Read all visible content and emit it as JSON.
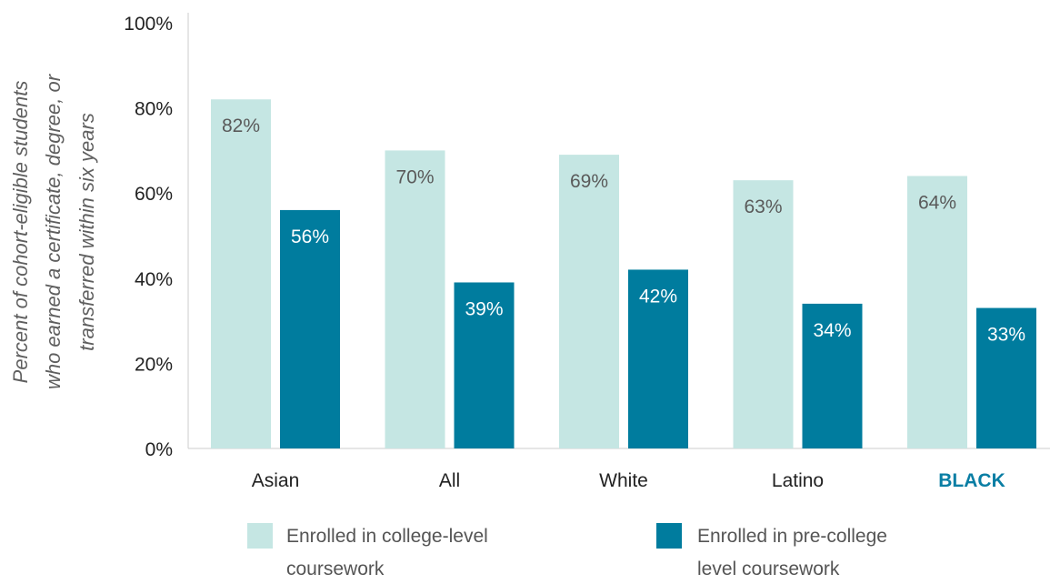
{
  "chart_data": {
    "type": "bar",
    "ylabel_lines": [
      "Percent of cohort-eligible students",
      "who earned a certificate, degree, or",
      "transferred within six years"
    ],
    "ylim": [
      0,
      100
    ],
    "yticks": [
      {
        "value": 0,
        "label": "0%"
      },
      {
        "value": 20,
        "label": "20%"
      },
      {
        "value": 40,
        "label": "40%"
      },
      {
        "value": 60,
        "label": "60%"
      },
      {
        "value": 80,
        "label": "80%"
      },
      {
        "value": 100,
        "label": "100%"
      }
    ],
    "grid": false,
    "legend_position": "bottom",
    "categories": [
      "Asian",
      "All",
      "White",
      "Latino",
      "BLACK"
    ],
    "highlight_category": "BLACK",
    "series": [
      {
        "name_lines": [
          "Enrolled in college-level",
          "coursework"
        ],
        "color": "#c5e6e3",
        "label_color": "#5a5a5a",
        "values": [
          82,
          70,
          69,
          63,
          64
        ],
        "labels": [
          "82%",
          "70%",
          "69%",
          "63%",
          "64%"
        ]
      },
      {
        "name_lines": [
          "Enrolled in pre-college",
          "level coursework"
        ],
        "color": "#007c9e",
        "label_color": "#ffffff",
        "values": [
          56,
          39,
          42,
          34,
          33
        ],
        "labels": [
          "56%",
          "39%",
          "42%",
          "34%",
          "33%"
        ]
      }
    ],
    "colors": {
      "axis": "#cccccc",
      "highlight": "#0a7ea4"
    }
  }
}
